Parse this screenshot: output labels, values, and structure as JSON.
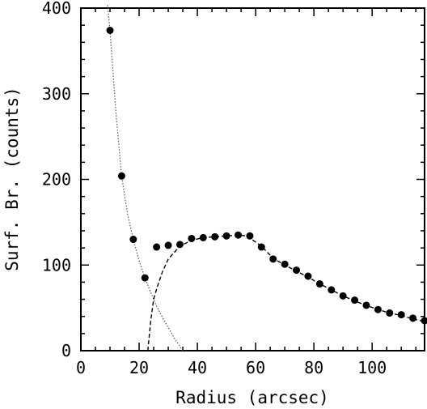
{
  "chart_data": {
    "type": "scatter",
    "xlabel": "Radius (arcsec)",
    "ylabel": "Surf. Br. (counts)",
    "xlim": [
      0,
      118
    ],
    "ylim": [
      0,
      400
    ],
    "x_ticks": [
      0,
      20,
      40,
      60,
      80,
      100
    ],
    "y_ticks": [
      0,
      100,
      200,
      300,
      400
    ],
    "x_tick_labels": [
      "0",
      "20",
      "40",
      "60",
      "80",
      "100"
    ],
    "y_tick_labels": [
      "0",
      "100",
      "200",
      "300",
      "400"
    ],
    "grid": false,
    "legend": "none",
    "points": {
      "x": [
        10,
        14,
        18,
        22,
        26,
        30,
        34,
        38,
        42,
        46,
        50,
        54,
        58,
        62,
        66,
        70,
        74,
        78,
        82,
        86,
        90,
        94,
        98,
        102,
        106,
        110,
        114,
        118
      ],
      "y": [
        374,
        204,
        130,
        85,
        121,
        123,
        124,
        131,
        132,
        133,
        134,
        135,
        134,
        121,
        107,
        101,
        94,
        87,
        78,
        71,
        64,
        59,
        53,
        48,
        44,
        42,
        38,
        35
      ]
    },
    "curves": [
      {
        "style": "dotted",
        "x": [
          9,
          10,
          12,
          14,
          16,
          18,
          20,
          22,
          24,
          26,
          28,
          30,
          32,
          34,
          35
        ],
        "y": [
          410,
          374,
          280,
          204,
          160,
          130,
          105,
          85,
          68,
          52,
          39,
          27,
          15,
          5,
          0
        ]
      },
      {
        "style": "dashed",
        "x": [
          23,
          24,
          25,
          26,
          28,
          30,
          34,
          38,
          42,
          46,
          50,
          54,
          57,
          62,
          66,
          70,
          74,
          78,
          82,
          86,
          90,
          94,
          98,
          102,
          106,
          110,
          114,
          118
        ],
        "y": [
          0,
          35,
          60,
          72,
          92,
          107,
          122,
          129,
          132,
          133,
          134,
          135,
          134,
          122,
          108,
          100,
          93,
          86,
          78,
          71,
          64,
          58,
          53,
          48,
          44,
          41,
          37,
          34
        ]
      }
    ],
    "colors": {
      "background": "#ffffff",
      "foreground": "#000000",
      "dotted_curve": "#555555"
    }
  }
}
